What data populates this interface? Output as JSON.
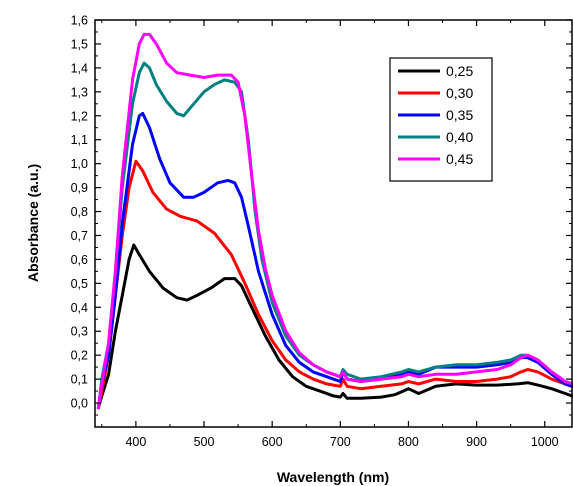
{
  "chart_data": {
    "type": "line",
    "xlabel": "Wavelength (nm)",
    "ylabel": "Absorbance (a.u.)",
    "xlim": [
      340,
      1040
    ],
    "ylim": [
      -0.1,
      1.6
    ],
    "xticks": [
      400,
      500,
      600,
      700,
      800,
      900,
      1000
    ],
    "xtick_labels": [
      "400",
      "500",
      "600",
      "700",
      "800",
      "900",
      "1000"
    ],
    "yticks": [
      0.0,
      0.1,
      0.2,
      0.3,
      0.4,
      0.5,
      0.6,
      0.7,
      0.8,
      0.9,
      1.0,
      1.1,
      1.2,
      1.3,
      1.4,
      1.5,
      1.6
    ],
    "ytick_labels": [
      "0,0",
      "0,1",
      "0,2",
      "0,3",
      "0,4",
      "0,5",
      "0,6",
      "0,7",
      "0,8",
      "0,9",
      "1,0",
      "1,1",
      "1,2",
      "1,3",
      "1,4",
      "1,5",
      "1,6"
    ],
    "grid": false,
    "legend_position": "top-right",
    "series": [
      {
        "name": "0,25",
        "color": "#000000",
        "x": [
          345,
          350,
          360,
          370,
          380,
          390,
          397,
          405,
          420,
          440,
          460,
          475,
          490,
          510,
          530,
          545,
          555,
          570,
          590,
          610,
          630,
          650,
          670,
          690,
          700,
          704,
          710,
          730,
          760,
          780,
          800,
          815,
          840,
          870,
          900,
          930,
          960,
          975,
          990,
          1010,
          1030,
          1040
        ],
        "y": [
          -0.02,
          0.03,
          0.12,
          0.3,
          0.45,
          0.6,
          0.66,
          0.62,
          0.55,
          0.48,
          0.44,
          0.43,
          0.45,
          0.48,
          0.52,
          0.52,
          0.49,
          0.4,
          0.28,
          0.18,
          0.11,
          0.07,
          0.05,
          0.03,
          0.025,
          0.04,
          0.02,
          0.02,
          0.025,
          0.035,
          0.06,
          0.04,
          0.07,
          0.08,
          0.075,
          0.075,
          0.08,
          0.085,
          0.075,
          0.06,
          0.04,
          0.03
        ]
      },
      {
        "name": "0,30",
        "color": "#ff0000",
        "x": [
          345,
          350,
          360,
          370,
          380,
          390,
          400,
          410,
          425,
          445,
          465,
          490,
          515,
          540,
          560,
          580,
          600,
          620,
          640,
          660,
          680,
          700,
          704,
          710,
          730,
          760,
          790,
          800,
          815,
          840,
          870,
          900,
          930,
          950,
          965,
          975,
          990,
          1010,
          1030,
          1040
        ],
        "y": [
          -0.02,
          0.05,
          0.2,
          0.45,
          0.7,
          0.9,
          1.01,
          0.97,
          0.88,
          0.81,
          0.78,
          0.76,
          0.71,
          0.62,
          0.5,
          0.37,
          0.26,
          0.18,
          0.13,
          0.1,
          0.08,
          0.07,
          0.1,
          0.07,
          0.06,
          0.07,
          0.08,
          0.09,
          0.08,
          0.1,
          0.09,
          0.09,
          0.1,
          0.11,
          0.13,
          0.14,
          0.13,
          0.1,
          0.08,
          0.07
        ]
      },
      {
        "name": "0,35",
        "color": "#0000ff",
        "x": [
          345,
          350,
          360,
          370,
          380,
          395,
          405,
          410,
          420,
          435,
          450,
          470,
          485,
          500,
          520,
          535,
          545,
          555,
          565,
          580,
          600,
          620,
          640,
          660,
          680,
          700,
          704,
          710,
          730,
          760,
          790,
          800,
          815,
          840,
          870,
          900,
          930,
          950,
          965,
          975,
          990,
          1010,
          1030,
          1040
        ],
        "y": [
          -0.02,
          0.08,
          0.2,
          0.45,
          0.75,
          1.08,
          1.2,
          1.21,
          1.15,
          1.02,
          0.92,
          0.86,
          0.86,
          0.88,
          0.92,
          0.93,
          0.92,
          0.86,
          0.74,
          0.55,
          0.37,
          0.24,
          0.17,
          0.13,
          0.11,
          0.09,
          0.13,
          0.1,
          0.09,
          0.1,
          0.12,
          0.13,
          0.12,
          0.15,
          0.15,
          0.15,
          0.16,
          0.17,
          0.19,
          0.19,
          0.17,
          0.12,
          0.08,
          0.07
        ]
      },
      {
        "name": "0,40",
        "color": "#008080",
        "x": [
          345,
          350,
          360,
          370,
          380,
          395,
          405,
          412,
          420,
          430,
          445,
          460,
          470,
          485,
          500,
          515,
          530,
          545,
          555,
          565,
          575,
          585,
          600,
          620,
          640,
          660,
          680,
          700,
          704,
          710,
          730,
          760,
          790,
          800,
          815,
          840,
          870,
          900,
          930,
          950,
          965,
          975,
          990,
          1010,
          1030,
          1040
        ],
        "y": [
          -0.02,
          0.1,
          0.25,
          0.55,
          0.9,
          1.25,
          1.38,
          1.42,
          1.4,
          1.33,
          1.26,
          1.21,
          1.2,
          1.25,
          1.3,
          1.33,
          1.35,
          1.34,
          1.3,
          1.1,
          0.8,
          0.6,
          0.42,
          0.28,
          0.2,
          0.16,
          0.13,
          0.11,
          0.14,
          0.12,
          0.1,
          0.11,
          0.13,
          0.14,
          0.13,
          0.15,
          0.16,
          0.16,
          0.17,
          0.18,
          0.2,
          0.2,
          0.18,
          0.13,
          0.09,
          0.08
        ]
      },
      {
        "name": "0,45",
        "color": "#ff00ff",
        "x": [
          345,
          350,
          360,
          370,
          380,
          395,
          405,
          412,
          420,
          430,
          445,
          460,
          480,
          500,
          520,
          540,
          550,
          560,
          570,
          580,
          590,
          600,
          620,
          640,
          660,
          680,
          700,
          704,
          710,
          730,
          760,
          790,
          800,
          815,
          840,
          870,
          900,
          930,
          950,
          965,
          975,
          990,
          1010,
          1030,
          1040
        ],
        "y": [
          -0.02,
          0.08,
          0.25,
          0.55,
          0.95,
          1.35,
          1.5,
          1.54,
          1.54,
          1.5,
          1.42,
          1.38,
          1.37,
          1.36,
          1.37,
          1.37,
          1.34,
          1.2,
          0.95,
          0.72,
          0.56,
          0.45,
          0.3,
          0.21,
          0.16,
          0.13,
          0.11,
          0.13,
          0.1,
          0.09,
          0.1,
          0.11,
          0.12,
          0.11,
          0.12,
          0.12,
          0.13,
          0.14,
          0.16,
          0.19,
          0.2,
          0.18,
          0.13,
          0.09,
          0.08
        ]
      }
    ]
  }
}
